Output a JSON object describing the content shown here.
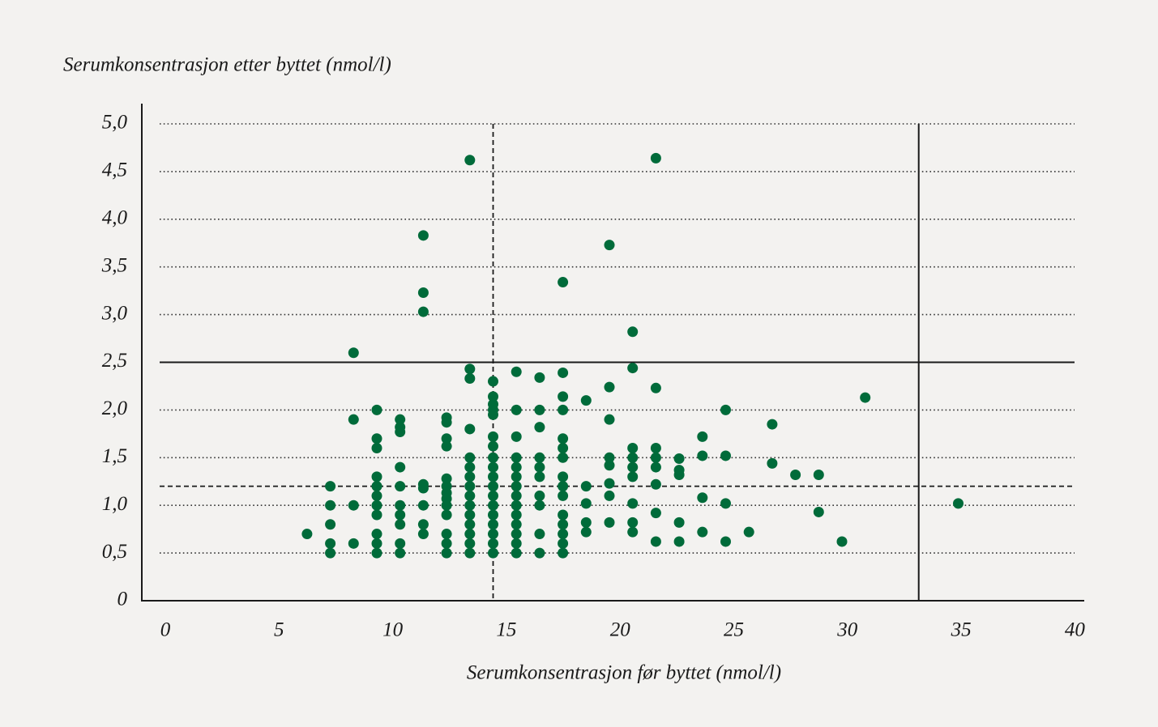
{
  "chart_data": {
    "type": "scatter",
    "y_label": "Serumkonsentrasjon etter byttet (nmol/l)",
    "x_label": "Serumkonsentrasjon før byttet (nmol/l)",
    "xlim": [
      0,
      40
    ],
    "ylim": [
      0,
      5
    ],
    "xticks": [
      0,
      5,
      10,
      15,
      20,
      25,
      30,
      35,
      40
    ],
    "yticks": [
      0,
      {
        "value": 0.5,
        "label": "0,5"
      },
      {
        "value": 1,
        "label": "1,0"
      },
      {
        "value": 1.5,
        "label": "1,5"
      },
      {
        "value": 2,
        "label": "2,0"
      },
      {
        "value": 2.5,
        "label": "2,5"
      },
      {
        "value": 3,
        "label": "3,0"
      },
      {
        "value": 3.5,
        "label": "3,5"
      },
      {
        "value": 4,
        "label": "4,0"
      },
      {
        "value": 4.5,
        "label": "4,5"
      },
      {
        "value": 5,
        "label": "5,0"
      }
    ],
    "grid": true,
    "reference_lines": [
      {
        "axis": "y",
        "value": 2.5,
        "style": "solid"
      },
      {
        "axis": "y",
        "value": 1.2,
        "style": "dashed"
      },
      {
        "axis": "x",
        "value": 15,
        "style": "dashed"
      },
      {
        "axis": "x",
        "value": 33.3,
        "style": "solid"
      }
    ],
    "series": [
      {
        "color": "#006b3a",
        "x": [
          7,
          8,
          8,
          8,
          8,
          8,
          9,
          9,
          9,
          9,
          10,
          10,
          10,
          10,
          10,
          10,
          10,
          10,
          10,
          10,
          10,
          11,
          11,
          11,
          11,
          11,
          11,
          11,
          11,
          11,
          11,
          12,
          12,
          12,
          12,
          12,
          12,
          12,
          12,
          13,
          13,
          13,
          13,
          13,
          13,
          13,
          13,
          13,
          13,
          13,
          13,
          13,
          14,
          14,
          14,
          14,
          14,
          14,
          14,
          14,
          14,
          14,
          14,
          14,
          14,
          14,
          14,
          15,
          15,
          15,
          15,
          15,
          15,
          15,
          15,
          15,
          15,
          15,
          15,
          15,
          15,
          15,
          15,
          15,
          15,
          16,
          16,
          16,
          16,
          16,
          16,
          16,
          16,
          16,
          16,
          16,
          16,
          16,
          16,
          17,
          17,
          17,
          17,
          17,
          17,
          17,
          17,
          17,
          17,
          18,
          18,
          18,
          18,
          18,
          18,
          18,
          18,
          18,
          18,
          18,
          18,
          18,
          18,
          18,
          19,
          19,
          19,
          19,
          19,
          20,
          20,
          20,
          20,
          20,
          20,
          20,
          20,
          21,
          21,
          21,
          21,
          21,
          21,
          21,
          21,
          21,
          22,
          22,
          22,
          22,
          22,
          22,
          22,
          22,
          23,
          23,
          23,
          23,
          23,
          24,
          24,
          24,
          24,
          25,
          25,
          25,
          25,
          26,
          27,
          27,
          28,
          29,
          29,
          30,
          31,
          35
        ],
        "values": [
          0.7,
          0.5,
          0.6,
          0.8,
          1.0,
          1.2,
          0.6,
          1.0,
          1.9,
          2.6,
          0.5,
          0.6,
          0.7,
          0.9,
          1.0,
          1.1,
          1.2,
          1.3,
          1.6,
          1.7,
          2.0,
          0.5,
          0.6,
          0.8,
          0.9,
          1.0,
          1.2,
          1.4,
          1.77,
          1.82,
          1.9,
          0.7,
          0.8,
          1.0,
          1.18,
          1.22,
          3.03,
          3.23,
          3.83,
          0.5,
          0.6,
          0.7,
          0.9,
          1.0,
          1.07,
          1.13,
          1.2,
          1.28,
          1.62,
          1.7,
          1.87,
          1.92,
          0.5,
          0.6,
          0.7,
          0.8,
          0.9,
          1.0,
          1.1,
          1.2,
          1.3,
          1.4,
          1.5,
          1.8,
          2.33,
          2.43,
          4.62,
          0.5,
          0.6,
          0.7,
          0.8,
          0.9,
          1.0,
          1.1,
          1.2,
          1.3,
          1.4,
          1.5,
          1.62,
          1.72,
          1.95,
          2.0,
          2.06,
          2.14,
          2.3,
          0.5,
          0.6,
          0.7,
          0.8,
          0.9,
          1.0,
          1.1,
          1.2,
          1.3,
          1.4,
          1.5,
          1.72,
          2.0,
          2.4,
          0.5,
          0.7,
          1.0,
          1.1,
          1.3,
          1.4,
          1.5,
          1.82,
          2.0,
          2.34,
          0.5,
          0.6,
          0.7,
          0.8,
          0.9,
          1.1,
          1.2,
          1.3,
          1.5,
          1.6,
          1.7,
          2.0,
          2.14,
          2.39,
          3.34,
          0.72,
          0.82,
          1.02,
          1.2,
          2.1,
          0.82,
          1.1,
          1.23,
          1.42,
          1.5,
          1.9,
          2.24,
          3.73,
          0.72,
          0.82,
          1.02,
          1.3,
          1.4,
          1.5,
          1.6,
          2.44,
          2.82,
          0.62,
          0.92,
          1.22,
          1.4,
          1.5,
          1.6,
          2.23,
          4.64,
          0.62,
          0.82,
          1.32,
          1.37,
          1.49,
          0.72,
          1.08,
          1.52,
          1.72,
          0.62,
          1.02,
          1.52,
          2.0,
          0.72,
          1.44,
          1.85,
          1.32,
          0.93,
          1.32,
          0.62,
          2.13,
          1.02
        ]
      }
    ]
  }
}
